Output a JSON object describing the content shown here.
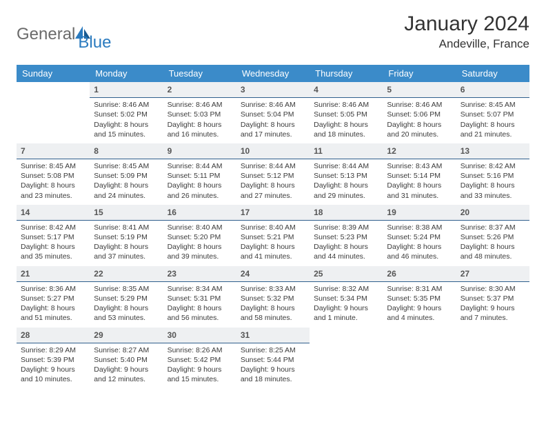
{
  "logo": {
    "part1": "General",
    "part2": "Blue"
  },
  "title": "January 2024",
  "location": "Andeville, France",
  "colors": {
    "header_bg": "#3b8bc9",
    "header_text": "#ffffff",
    "daynum_bg": "#eef0f2",
    "daynum_border": "#2e5e8c",
    "logo_gray": "#6b6b6b",
    "logo_blue": "#2b7bbf"
  },
  "weekdays": [
    "Sunday",
    "Monday",
    "Tuesday",
    "Wednesday",
    "Thursday",
    "Friday",
    "Saturday"
  ],
  "weeks": [
    [
      null,
      {
        "n": "1",
        "sr": "Sunrise: 8:46 AM",
        "ss": "Sunset: 5:02 PM",
        "d1": "Daylight: 8 hours",
        "d2": "and 15 minutes."
      },
      {
        "n": "2",
        "sr": "Sunrise: 8:46 AM",
        "ss": "Sunset: 5:03 PM",
        "d1": "Daylight: 8 hours",
        "d2": "and 16 minutes."
      },
      {
        "n": "3",
        "sr": "Sunrise: 8:46 AM",
        "ss": "Sunset: 5:04 PM",
        "d1": "Daylight: 8 hours",
        "d2": "and 17 minutes."
      },
      {
        "n": "4",
        "sr": "Sunrise: 8:46 AM",
        "ss": "Sunset: 5:05 PM",
        "d1": "Daylight: 8 hours",
        "d2": "and 18 minutes."
      },
      {
        "n": "5",
        "sr": "Sunrise: 8:46 AM",
        "ss": "Sunset: 5:06 PM",
        "d1": "Daylight: 8 hours",
        "d2": "and 20 minutes."
      },
      {
        "n": "6",
        "sr": "Sunrise: 8:45 AM",
        "ss": "Sunset: 5:07 PM",
        "d1": "Daylight: 8 hours",
        "d2": "and 21 minutes."
      }
    ],
    [
      {
        "n": "7",
        "sr": "Sunrise: 8:45 AM",
        "ss": "Sunset: 5:08 PM",
        "d1": "Daylight: 8 hours",
        "d2": "and 23 minutes."
      },
      {
        "n": "8",
        "sr": "Sunrise: 8:45 AM",
        "ss": "Sunset: 5:09 PM",
        "d1": "Daylight: 8 hours",
        "d2": "and 24 minutes."
      },
      {
        "n": "9",
        "sr": "Sunrise: 8:44 AM",
        "ss": "Sunset: 5:11 PM",
        "d1": "Daylight: 8 hours",
        "d2": "and 26 minutes."
      },
      {
        "n": "10",
        "sr": "Sunrise: 8:44 AM",
        "ss": "Sunset: 5:12 PM",
        "d1": "Daylight: 8 hours",
        "d2": "and 27 minutes."
      },
      {
        "n": "11",
        "sr": "Sunrise: 8:44 AM",
        "ss": "Sunset: 5:13 PM",
        "d1": "Daylight: 8 hours",
        "d2": "and 29 minutes."
      },
      {
        "n": "12",
        "sr": "Sunrise: 8:43 AM",
        "ss": "Sunset: 5:14 PM",
        "d1": "Daylight: 8 hours",
        "d2": "and 31 minutes."
      },
      {
        "n": "13",
        "sr": "Sunrise: 8:42 AM",
        "ss": "Sunset: 5:16 PM",
        "d1": "Daylight: 8 hours",
        "d2": "and 33 minutes."
      }
    ],
    [
      {
        "n": "14",
        "sr": "Sunrise: 8:42 AM",
        "ss": "Sunset: 5:17 PM",
        "d1": "Daylight: 8 hours",
        "d2": "and 35 minutes."
      },
      {
        "n": "15",
        "sr": "Sunrise: 8:41 AM",
        "ss": "Sunset: 5:19 PM",
        "d1": "Daylight: 8 hours",
        "d2": "and 37 minutes."
      },
      {
        "n": "16",
        "sr": "Sunrise: 8:40 AM",
        "ss": "Sunset: 5:20 PM",
        "d1": "Daylight: 8 hours",
        "d2": "and 39 minutes."
      },
      {
        "n": "17",
        "sr": "Sunrise: 8:40 AM",
        "ss": "Sunset: 5:21 PM",
        "d1": "Daylight: 8 hours",
        "d2": "and 41 minutes."
      },
      {
        "n": "18",
        "sr": "Sunrise: 8:39 AM",
        "ss": "Sunset: 5:23 PM",
        "d1": "Daylight: 8 hours",
        "d2": "and 44 minutes."
      },
      {
        "n": "19",
        "sr": "Sunrise: 8:38 AM",
        "ss": "Sunset: 5:24 PM",
        "d1": "Daylight: 8 hours",
        "d2": "and 46 minutes."
      },
      {
        "n": "20",
        "sr": "Sunrise: 8:37 AM",
        "ss": "Sunset: 5:26 PM",
        "d1": "Daylight: 8 hours",
        "d2": "and 48 minutes."
      }
    ],
    [
      {
        "n": "21",
        "sr": "Sunrise: 8:36 AM",
        "ss": "Sunset: 5:27 PM",
        "d1": "Daylight: 8 hours",
        "d2": "and 51 minutes."
      },
      {
        "n": "22",
        "sr": "Sunrise: 8:35 AM",
        "ss": "Sunset: 5:29 PM",
        "d1": "Daylight: 8 hours",
        "d2": "and 53 minutes."
      },
      {
        "n": "23",
        "sr": "Sunrise: 8:34 AM",
        "ss": "Sunset: 5:31 PM",
        "d1": "Daylight: 8 hours",
        "d2": "and 56 minutes."
      },
      {
        "n": "24",
        "sr": "Sunrise: 8:33 AM",
        "ss": "Sunset: 5:32 PM",
        "d1": "Daylight: 8 hours",
        "d2": "and 58 minutes."
      },
      {
        "n": "25",
        "sr": "Sunrise: 8:32 AM",
        "ss": "Sunset: 5:34 PM",
        "d1": "Daylight: 9 hours",
        "d2": "and 1 minute."
      },
      {
        "n": "26",
        "sr": "Sunrise: 8:31 AM",
        "ss": "Sunset: 5:35 PM",
        "d1": "Daylight: 9 hours",
        "d2": "and 4 minutes."
      },
      {
        "n": "27",
        "sr": "Sunrise: 8:30 AM",
        "ss": "Sunset: 5:37 PM",
        "d1": "Daylight: 9 hours",
        "d2": "and 7 minutes."
      }
    ],
    [
      {
        "n": "28",
        "sr": "Sunrise: 8:29 AM",
        "ss": "Sunset: 5:39 PM",
        "d1": "Daylight: 9 hours",
        "d2": "and 10 minutes."
      },
      {
        "n": "29",
        "sr": "Sunrise: 8:27 AM",
        "ss": "Sunset: 5:40 PM",
        "d1": "Daylight: 9 hours",
        "d2": "and 12 minutes."
      },
      {
        "n": "30",
        "sr": "Sunrise: 8:26 AM",
        "ss": "Sunset: 5:42 PM",
        "d1": "Daylight: 9 hours",
        "d2": "and 15 minutes."
      },
      {
        "n": "31",
        "sr": "Sunrise: 8:25 AM",
        "ss": "Sunset: 5:44 PM",
        "d1": "Daylight: 9 hours",
        "d2": "and 18 minutes."
      },
      null,
      null,
      null
    ]
  ]
}
